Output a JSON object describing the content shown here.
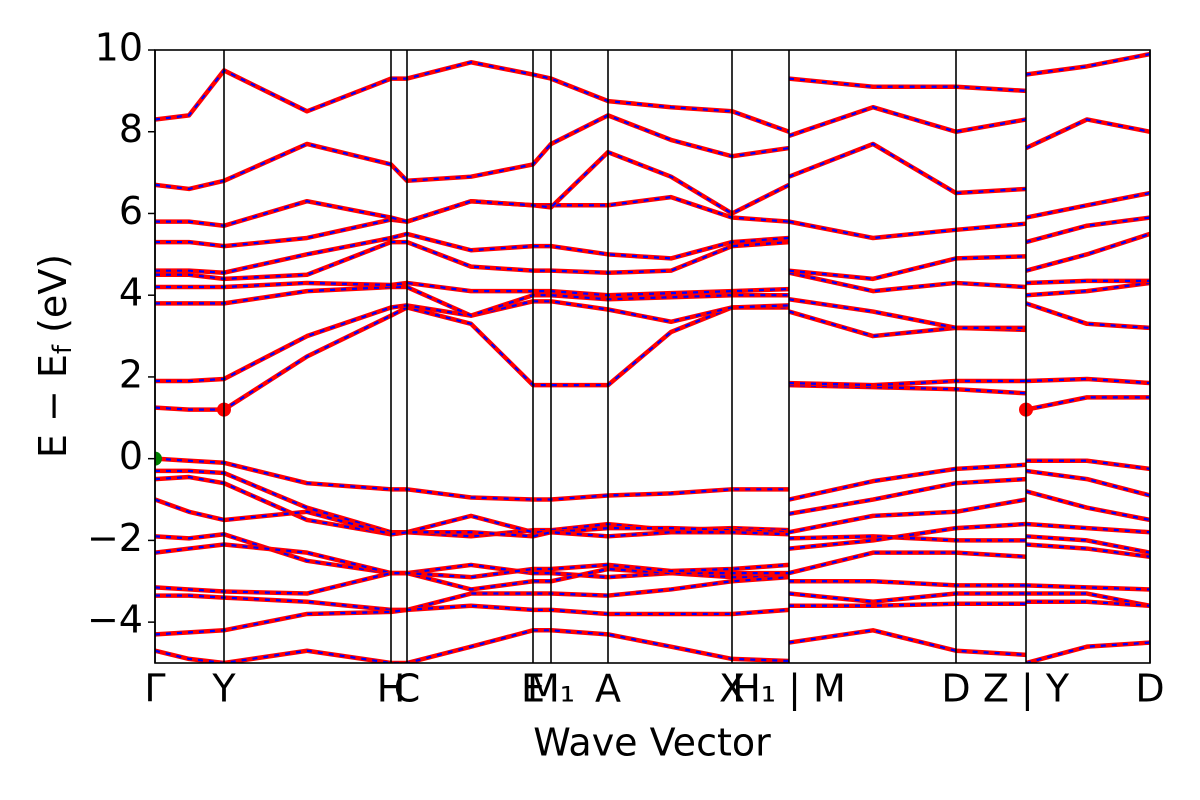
{
  "chart_data": {
    "type": "line",
    "xlabel": "Wave Vector",
    "ylabel": [
      "E − E",
      "f",
      " (eV)"
    ],
    "xlim": [
      0,
      4.975
    ],
    "ylim": [
      -5,
      10
    ],
    "xticks": [
      {
        "value": 0,
        "label": "Γ"
      },
      {
        "value": 0.345,
        "label": "Y"
      },
      {
        "value": 1.18,
        "label": "H"
      },
      {
        "value": 1.26,
        "label": "C"
      },
      {
        "value": 1.89,
        "label": "E"
      },
      {
        "value": 1.98,
        "label": "M₁"
      },
      {
        "value": 2.265,
        "label": "A"
      },
      {
        "value": 2.885,
        "label": "X"
      },
      {
        "value": 3.17,
        "label": "H₁ | M"
      },
      {
        "value": 4.005,
        "label": "D"
      },
      {
        "value": 4.355,
        "label": "Z | Y"
      },
      {
        "value": 4.975,
        "label": "D"
      }
    ],
    "yticks": [
      {
        "value": -4,
        "label": "−4"
      },
      {
        "value": -2,
        "label": "−2"
      },
      0,
      2,
      4,
      6,
      8,
      10
    ],
    "line_color": "#ff0000",
    "dash_color": "#0000ff",
    "x": [
      0,
      0.17,
      0.345,
      0.76,
      1.18,
      1.26,
      1.58,
      1.89,
      1.98,
      2.265,
      2.58,
      2.885,
      3.17,
      3.17,
      3.17,
      3.59,
      4.005,
      4.355,
      4.355,
      4.355,
      4.66,
      4.975
    ],
    "series": [
      {
        "values": [
          0,
          -0.05,
          -0.1,
          -0.6,
          -0.75,
          -0.75,
          -0.95,
          -1.0,
          -1.0,
          -0.9,
          -0.85,
          -0.75,
          -0.75,
          null,
          -1.0,
          -0.55,
          -0.25,
          -0.15,
          null,
          -0.05,
          -0.05,
          -0.25
        ]
      },
      {
        "values": [
          -0.3,
          -0.3,
          -0.35,
          -1.2,
          -1.8,
          -1.8,
          -1.9,
          -1.75,
          -1.75,
          -1.6,
          -1.75,
          -1.7,
          -1.75,
          null,
          -1.35,
          -1.0,
          -0.6,
          -0.5,
          null,
          -0.3,
          -0.5,
          -0.9
        ]
      },
      {
        "values": [
          -0.5,
          -0.45,
          -0.6,
          -1.5,
          -1.85,
          -1.8,
          -1.4,
          -1.8,
          -1.8,
          -1.7,
          -1.7,
          -1.75,
          -1.8,
          null,
          -1.8,
          -1.4,
          -1.3,
          -1.0,
          null,
          -0.8,
          -1.2,
          -1.5
        ]
      },
      {
        "values": [
          -1.0,
          -1.3,
          -1.5,
          -1.3,
          -1.85,
          -1.8,
          -1.8,
          -1.9,
          -1.8,
          -1.9,
          -1.8,
          -1.8,
          -1.85,
          null,
          -1.95,
          -1.9,
          -2.0,
          -2.0,
          null,
          -1.6,
          -1.7,
          -1.8
        ]
      },
      {
        "values": [
          -1.9,
          -1.95,
          -1.85,
          -2.5,
          -2.8,
          -2.8,
          -2.6,
          -2.8,
          -2.8,
          -2.9,
          -2.8,
          -2.9,
          -2.9,
          null,
          -2.2,
          -2.0,
          -1.7,
          -1.6,
          null,
          -1.9,
          -2.0,
          -2.3
        ]
      },
      {
        "values": [
          -2.3,
          -2.2,
          -2.1,
          -2.3,
          -2.8,
          -2.8,
          -3.2,
          -3.0,
          -3.0,
          -2.7,
          -2.8,
          -2.8,
          -2.8,
          null,
          -2.8,
          -2.3,
          -2.3,
          -2.4,
          null,
          -2.1,
          -2.2,
          -2.4
        ]
      },
      {
        "values": [
          -3.15,
          -3.2,
          -3.25,
          -3.3,
          -2.8,
          -2.8,
          -2.9,
          -2.7,
          -2.7,
          -2.6,
          -2.75,
          -2.7,
          -2.6,
          null,
          -3.0,
          -3.0,
          -3.1,
          -3.1,
          null,
          -3.1,
          -3.15,
          -3.2
        ]
      },
      {
        "values": [
          -3.35,
          -3.35,
          -3.4,
          -3.5,
          -3.7,
          -3.7,
          -3.3,
          -3.3,
          -3.3,
          -3.35,
          -3.2,
          -3.0,
          -2.9,
          null,
          -3.3,
          -3.5,
          -3.3,
          -3.3,
          null,
          -3.3,
          -3.3,
          -3.6
        ]
      },
      {
        "values": [
          -4.3,
          -4.25,
          -4.2,
          -3.8,
          -3.75,
          -3.7,
          -3.6,
          -3.7,
          -3.7,
          -3.8,
          -3.8,
          -3.8,
          -3.7,
          null,
          -3.6,
          -3.6,
          -3.55,
          -3.55,
          null,
          -3.5,
          -3.5,
          -3.6
        ]
      },
      {
        "values": [
          -4.7,
          -4.9,
          -5.0,
          -4.7,
          -5.0,
          -5.0,
          -4.6,
          -4.2,
          -4.2,
          -4.3,
          -4.6,
          -4.9,
          -4.95,
          null,
          -4.5,
          -4.2,
          -4.7,
          -4.8,
          null,
          -5.0,
          -4.6,
          -4.5
        ]
      },
      {
        "values": [
          1.25,
          1.2,
          1.2,
          2.5,
          3.5,
          3.7,
          3.3,
          1.8,
          1.8,
          1.8,
          3.1,
          3.7,
          3.7,
          null,
          1.8,
          1.75,
          1.7,
          1.6,
          null,
          1.2,
          1.5,
          1.5
        ]
      },
      {
        "values": [
          1.9,
          1.9,
          1.95,
          3.0,
          3.7,
          3.75,
          3.5,
          3.85,
          3.85,
          3.65,
          3.35,
          3.7,
          3.75,
          null,
          1.85,
          1.8,
          1.9,
          1.9,
          null,
          1.9,
          1.95,
          1.85
        ]
      },
      {
        "values": [
          3.8,
          3.8,
          3.8,
          4.1,
          4.2,
          4.2,
          3.5,
          4.0,
          4.0,
          3.9,
          3.95,
          4.0,
          4.0,
          null,
          3.6,
          3.0,
          3.2,
          3.15,
          null,
          3.8,
          3.3,
          3.2
        ]
      },
      {
        "values": [
          4.2,
          4.2,
          4.2,
          4.3,
          4.25,
          4.3,
          4.1,
          4.1,
          4.1,
          4.0,
          4.05,
          4.1,
          4.15,
          null,
          3.9,
          3.6,
          3.2,
          3.2,
          null,
          4.0,
          4.1,
          4.3
        ]
      },
      {
        "values": [
          4.5,
          4.5,
          4.4,
          4.5,
          5.3,
          5.3,
          4.7,
          4.6,
          4.6,
          4.55,
          4.6,
          5.2,
          5.3,
          null,
          4.55,
          4.1,
          4.3,
          4.2,
          null,
          4.3,
          4.35,
          4.35
        ]
      },
      {
        "values": [
          4.6,
          4.6,
          4.55,
          5.0,
          5.4,
          5.5,
          5.1,
          5.2,
          5.2,
          5.0,
          4.9,
          5.3,
          5.4,
          null,
          4.6,
          4.4,
          4.9,
          4.95,
          null,
          4.6,
          5.0,
          5.5
        ]
      },
      {
        "values": [
          5.3,
          5.3,
          5.2,
          5.4,
          5.85,
          5.8,
          6.3,
          6.2,
          6.2,
          6.2,
          6.4,
          5.9,
          5.8,
          null,
          5.8,
          5.4,
          5.6,
          5.75,
          null,
          5.3,
          5.7,
          5.9
        ]
      },
      {
        "values": [
          5.8,
          5.8,
          5.7,
          6.3,
          5.9,
          5.8,
          6.3,
          6.2,
          6.15,
          7.5,
          6.9,
          6.0,
          6.7,
          null,
          6.9,
          7.7,
          6.5,
          6.6,
          null,
          5.9,
          6.2,
          6.5
        ]
      },
      {
        "values": [
          6.7,
          6.6,
          6.8,
          7.7,
          7.2,
          6.8,
          6.9,
          7.2,
          7.7,
          8.4,
          7.8,
          7.4,
          7.6,
          null,
          7.9,
          8.6,
          8.0,
          8.3,
          null,
          7.6,
          8.3,
          8.0
        ]
      },
      {
        "values": [
          8.3,
          8.4,
          9.5,
          8.5,
          9.3,
          9.3,
          9.7,
          9.4,
          9.3,
          8.75,
          8.6,
          8.5,
          8.0,
          null,
          9.3,
          9.1,
          9.1,
          9.0,
          null,
          9.4,
          9.6,
          9.9
        ]
      }
    ],
    "markers": {
      "x": [
        0,
        0.345,
        4.355
      ],
      "y": [
        0,
        1.2,
        1.2
      ],
      "colors": [
        "#008000",
        "#ff0000",
        "#ff0000"
      ]
    }
  }
}
